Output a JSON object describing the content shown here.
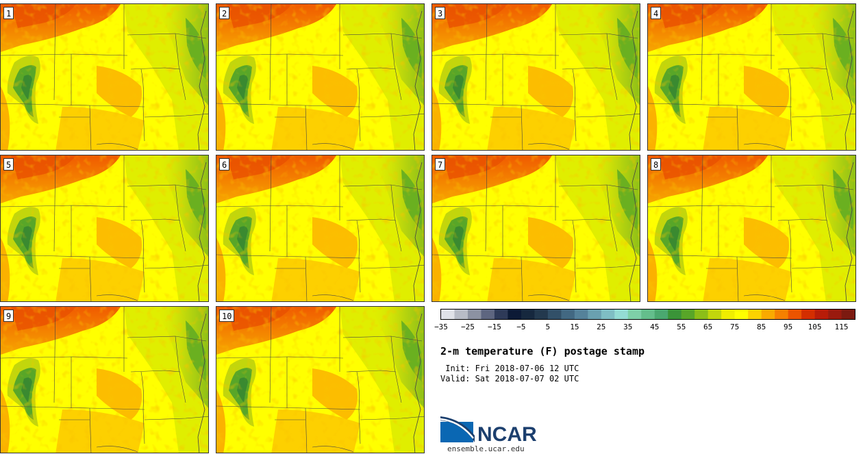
{
  "panels": [
    {
      "label": "1"
    },
    {
      "label": "2"
    },
    {
      "label": "3"
    },
    {
      "label": "4"
    },
    {
      "label": "5"
    },
    {
      "label": "6"
    },
    {
      "label": "7"
    },
    {
      "label": "8"
    },
    {
      "label": "9"
    },
    {
      "label": "10"
    }
  ],
  "colorbar": {
    "colors": [
      "#e0e2e8",
      "#b8bcc6",
      "#8c92a2",
      "#5e6680",
      "#2e3a58",
      "#0c1a36",
      "#16283e",
      "#23394e",
      "#325068",
      "#426882",
      "#55829a",
      "#6aa0b0",
      "#7fbec4",
      "#94dcd4",
      "#7ed0a8",
      "#64be8c",
      "#4aa870",
      "#3a9438",
      "#58a628",
      "#8cbe18",
      "#c2d60c",
      "#f0ee00",
      "#ffff00",
      "#fcd200",
      "#faaa00",
      "#f68000",
      "#ec5400",
      "#d42e00",
      "#b81c08",
      "#9a1a0e",
      "#7c1a10"
    ],
    "tick_labels": [
      "−35",
      "−25",
      "−15",
      "−5",
      "5",
      "15",
      "25",
      "35",
      "45",
      "55",
      "65",
      "75",
      "85",
      "95",
      "105",
      "115"
    ]
  },
  "title": "2-m temperature (F) postage stamp",
  "init_line": " Init: Fri 2018-07-06 12 UTC",
  "valid_line": "Valid: Sat 2018-07-07 02 UTC",
  "logo": {
    "text": "NCAR",
    "url": "ensemble.ucar.edu"
  }
}
